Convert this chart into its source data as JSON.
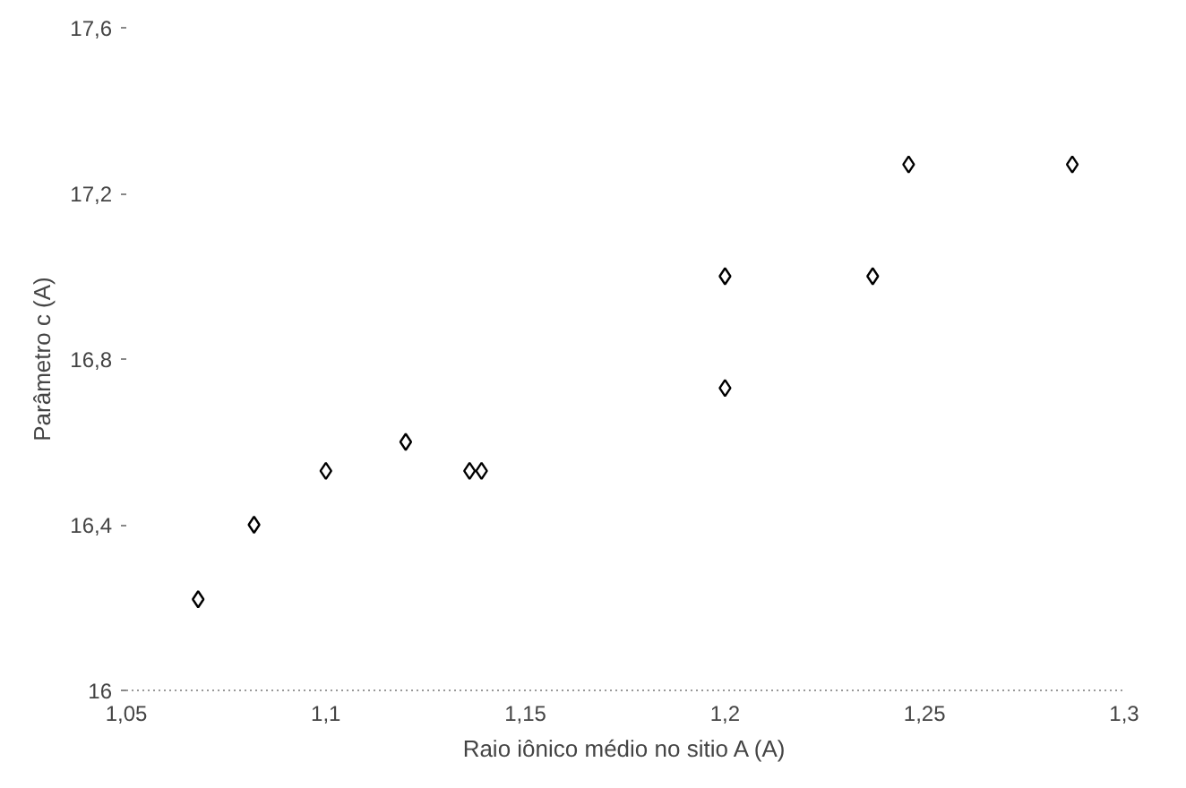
{
  "chart_data": {
    "type": "scatter",
    "xlabel": "Raio iônico médio no sitio A (A)",
    "ylabel": "Parâmetro c (A)",
    "x": [
      1.068,
      1.082,
      1.1,
      1.12,
      1.136,
      1.139,
      1.2,
      1.2,
      1.237,
      1.246,
      1.287
    ],
    "series": [
      {
        "color": "#000000",
        "values": [
          16.22,
          16.4,
          16.53,
          16.6,
          16.53,
          16.53,
          16.73,
          17.0,
          17.0,
          17.27,
          17.27
        ]
      }
    ],
    "marker": "diamond",
    "grid": false,
    "xlim": [
      1.05,
      1.3
    ],
    "ylim": [
      16,
      17.6
    ],
    "xticks": [
      {
        "value": 1.05,
        "label": "1,05"
      },
      {
        "value": 1.1,
        "label": "1,1"
      },
      {
        "value": 1.15,
        "label": "1,15"
      },
      {
        "value": 1.2,
        "label": "1,2"
      },
      {
        "value": 1.25,
        "label": "1,25"
      },
      {
        "value": 1.3,
        "label": "1,3"
      }
    ],
    "yticks": [
      {
        "value": 16,
        "label": "16"
      },
      {
        "value": 16.4,
        "label": "16,4"
      },
      {
        "value": 16.8,
        "label": "16,8"
      },
      {
        "value": 17.2,
        "label": "17,2"
      },
      {
        "value": 17.6,
        "label": "17,6"
      }
    ]
  }
}
